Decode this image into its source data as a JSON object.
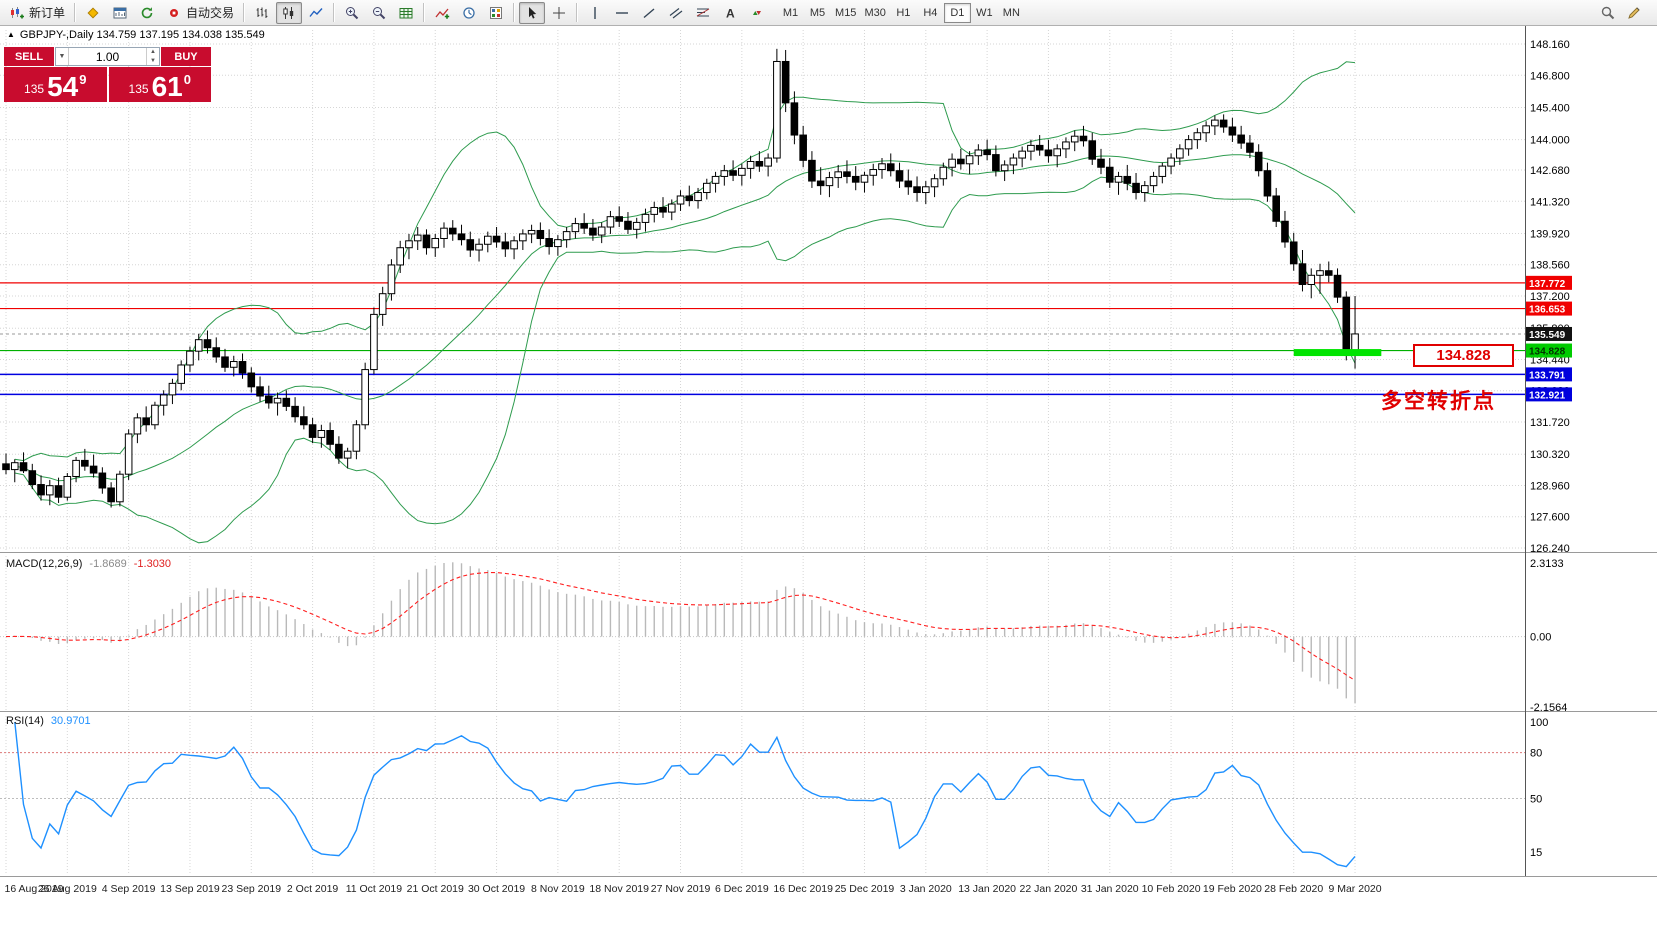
{
  "toolbar": {
    "new_order_label": "新订单",
    "auto_trading_label": "自动交易",
    "timeframes": [
      "M1",
      "M5",
      "M15",
      "M30",
      "H1",
      "H4",
      "D1",
      "W1",
      "MN"
    ],
    "active_timeframe": "D1"
  },
  "symbol_info": {
    "marker": "▲",
    "text": "GBPJPY-,Daily 134.759 137.195 134.038 135.549"
  },
  "trade_panel": {
    "sell_label": "SELL",
    "buy_label": "BUY",
    "volume": "1.00",
    "sell": {
      "prefix": "135",
      "main": "54",
      "sup": "9"
    },
    "buy": {
      "prefix": "135",
      "main": "61",
      "sup": "0"
    }
  },
  "annotations": {
    "price_label": "134.828",
    "turning_point": "多空转折点"
  },
  "price_axis": {
    "labels": [
      "148.160",
      "146.800",
      "145.400",
      "144.000",
      "142.680",
      "141.320",
      "139.920",
      "138.560",
      "137.200",
      "135.800",
      "134.440",
      "133.080",
      "131.720",
      "130.320",
      "128.960",
      "127.600",
      "126.240"
    ],
    "tags": [
      {
        "text": "137.772",
        "bg": "#f00000",
        "fg": "#ffffff"
      },
      {
        "text": "136.653",
        "bg": "#f00000",
        "fg": "#ffffff"
      },
      {
        "text": "135.549",
        "bg": "#111111",
        "fg": "#ffffff"
      },
      {
        "text": "134.828",
        "bg": "#00cc00",
        "fg": "#003300"
      },
      {
        "text": "133.791",
        "bg": "#0000dd",
        "fg": "#ffffff"
      },
      {
        "text": "132.921",
        "bg": "#0000dd",
        "fg": "#ffffff"
      }
    ]
  },
  "indicators": {
    "macd": {
      "name": "MACD(12,26,9)",
      "main_value": "-1.8689",
      "signal_value": "-1.3030",
      "scale": {
        "top": "2.3133",
        "zero": "0.00",
        "bottom": "-2.1564"
      },
      "fast": 12,
      "slow": 26,
      "smooth": 9
    },
    "rsi": {
      "name": "RSI(14)",
      "value": "30.9701",
      "period": 14,
      "scale_labels": [
        "100",
        "80",
        "50",
        "15"
      ],
      "levels": [
        80,
        50
      ]
    }
  },
  "objects": {
    "hlines": [
      {
        "price": 137.772,
        "color": "#f00000",
        "w": 1.2
      },
      {
        "price": 136.653,
        "color": "#f00000",
        "w": 1.2
      },
      {
        "price": 134.828,
        "color": "#00b000",
        "w": 1.2
      },
      {
        "price": 133.791,
        "color": "#0000e0",
        "w": 1.5
      },
      {
        "price": 132.921,
        "color": "#0000e0",
        "w": 1.5
      }
    ],
    "current_price": 135.549,
    "segment": {
      "price": 134.74,
      "from_index": 147,
      "to_index": 157,
      "thickness": 7,
      "color": "#00e400"
    }
  },
  "colors": {
    "grid": "#d6d6d6",
    "candle_up": "#ffffff",
    "candle_down": "#000000",
    "candle_border": "#000000",
    "bollinger": "#2e9b4e",
    "macd_hist": "#b9b9b9",
    "macd_signal": "#ff2020",
    "rsi_line": "#1e90ff",
    "level80": "#dd7777",
    "level50": "#bdbdbd",
    "current_line": "#9a9a9a",
    "panel_red": "#c80c2e",
    "axis_border": "#555555",
    "separator": "#9a9a9a"
  },
  "chart_data": {
    "type": "candlestick",
    "symbol": "GBPJPY-",
    "period": "Daily",
    "y_range": [
      126.24,
      148.16
    ],
    "x_label_step": 7,
    "bollinger": {
      "period": 20,
      "deviation": 2
    },
    "dates": [
      "16 Aug 2019",
      "26 Aug 2019",
      "4 Sep 2019",
      "13 Sep 2019",
      "23 Sep 2019",
      "2 Oct 2019",
      "11 Oct 2019",
      "21 Oct 2019",
      "30 Oct 2019",
      "8 Nov 2019",
      "18 Nov 2019",
      "27 Nov 2019",
      "6 Dec 2019",
      "16 Dec 2019",
      "25 Dec 2019",
      "3 Jan 2020",
      "13 Jan 2020",
      "22 Jan 2020",
      "31 Jan 2020",
      "10 Feb 2020",
      "19 Feb 2020",
      "28 Feb 2020",
      "9 Mar 2020"
    ],
    "ohlc": [
      [
        129.9,
        130.35,
        129.45,
        129.65
      ],
      [
        129.65,
        130.1,
        129.1,
        129.95
      ],
      [
        129.95,
        130.4,
        129.5,
        129.6
      ],
      [
        129.6,
        129.9,
        128.8,
        129.0
      ],
      [
        129.0,
        129.4,
        128.3,
        128.55
      ],
      [
        128.55,
        129.2,
        128.1,
        128.95
      ],
      [
        128.95,
        129.3,
        128.2,
        128.45
      ],
      [
        128.45,
        129.5,
        128.3,
        129.35
      ],
      [
        129.35,
        130.2,
        129.1,
        130.05
      ],
      [
        130.05,
        130.55,
        129.6,
        129.8
      ],
      [
        129.8,
        130.3,
        129.3,
        129.5
      ],
      [
        129.5,
        129.75,
        128.6,
        128.85
      ],
      [
        128.85,
        129.1,
        128.0,
        128.25
      ],
      [
        128.25,
        129.6,
        128.05,
        129.45
      ],
      [
        129.45,
        131.4,
        129.2,
        131.2
      ],
      [
        131.2,
        132.1,
        130.8,
        131.9
      ],
      [
        131.9,
        132.4,
        131.3,
        131.6
      ],
      [
        131.6,
        132.6,
        131.4,
        132.45
      ],
      [
        132.45,
        133.1,
        132.0,
        132.9
      ],
      [
        132.9,
        133.6,
        132.5,
        133.4
      ],
      [
        133.4,
        134.4,
        133.1,
        134.2
      ],
      [
        134.2,
        135.0,
        133.9,
        134.8
      ],
      [
        134.8,
        135.55,
        134.4,
        135.3
      ],
      [
        135.3,
        135.7,
        134.7,
        134.95
      ],
      [
        134.95,
        135.4,
        134.3,
        134.55
      ],
      [
        134.55,
        134.9,
        133.9,
        134.1
      ],
      [
        134.1,
        134.6,
        133.7,
        134.35
      ],
      [
        134.35,
        134.7,
        133.6,
        133.85
      ],
      [
        133.85,
        134.1,
        133.0,
        133.25
      ],
      [
        133.25,
        133.7,
        132.6,
        132.85
      ],
      [
        132.85,
        133.3,
        132.3,
        132.55
      ],
      [
        132.55,
        133.0,
        132.0,
        132.75
      ],
      [
        132.75,
        133.1,
        132.2,
        132.4
      ],
      [
        132.4,
        132.8,
        131.7,
        131.95
      ],
      [
        131.95,
        132.4,
        131.4,
        131.6
      ],
      [
        131.6,
        131.9,
        130.8,
        131.05
      ],
      [
        131.05,
        131.6,
        130.6,
        131.35
      ],
      [
        131.35,
        131.7,
        130.5,
        130.75
      ],
      [
        130.75,
        131.1,
        129.9,
        130.15
      ],
      [
        130.15,
        130.6,
        129.7,
        130.45
      ],
      [
        130.45,
        131.8,
        130.1,
        131.6
      ],
      [
        131.6,
        134.3,
        131.4,
        134.0
      ],
      [
        134.0,
        136.7,
        133.8,
        136.4
      ],
      [
        136.4,
        137.6,
        135.9,
        137.3
      ],
      [
        137.3,
        138.8,
        137.0,
        138.55
      ],
      [
        138.55,
        139.6,
        138.2,
        139.3
      ],
      [
        139.3,
        139.9,
        138.8,
        139.6
      ],
      [
        139.6,
        140.2,
        139.2,
        139.85
      ],
      [
        139.85,
        140.1,
        139.0,
        139.3
      ],
      [
        139.3,
        139.9,
        138.9,
        139.7
      ],
      [
        139.7,
        140.4,
        139.3,
        140.15
      ],
      [
        140.15,
        140.5,
        139.6,
        139.9
      ],
      [
        139.9,
        140.3,
        139.4,
        139.65
      ],
      [
        139.65,
        140.0,
        138.9,
        139.2
      ],
      [
        139.2,
        139.7,
        138.7,
        139.45
      ],
      [
        139.45,
        140.0,
        139.1,
        139.8
      ],
      [
        139.8,
        140.2,
        139.3,
        139.55
      ],
      [
        139.55,
        139.95,
        138.9,
        139.25
      ],
      [
        139.25,
        139.8,
        138.8,
        139.6
      ],
      [
        139.6,
        140.1,
        139.2,
        139.9
      ],
      [
        139.9,
        140.3,
        139.5,
        140.05
      ],
      [
        140.05,
        140.4,
        139.4,
        139.7
      ],
      [
        139.7,
        140.1,
        139.0,
        139.35
      ],
      [
        139.35,
        139.85,
        138.95,
        139.65
      ],
      [
        139.65,
        140.2,
        139.3,
        140.0
      ],
      [
        140.0,
        140.6,
        139.7,
        140.35
      ],
      [
        140.35,
        140.8,
        139.9,
        140.15
      ],
      [
        140.15,
        140.55,
        139.6,
        139.85
      ],
      [
        139.85,
        140.4,
        139.5,
        140.2
      ],
      [
        140.2,
        140.9,
        139.9,
        140.65
      ],
      [
        140.65,
        141.1,
        140.2,
        140.45
      ],
      [
        140.45,
        140.85,
        139.9,
        140.1
      ],
      [
        140.1,
        140.6,
        139.7,
        140.4
      ],
      [
        140.4,
        141.0,
        140.0,
        140.75
      ],
      [
        140.75,
        141.3,
        140.4,
        141.05
      ],
      [
        141.05,
        141.5,
        140.6,
        140.85
      ],
      [
        140.85,
        141.4,
        140.5,
        141.2
      ],
      [
        141.2,
        141.8,
        140.9,
        141.55
      ],
      [
        141.55,
        142.0,
        141.1,
        141.35
      ],
      [
        141.35,
        141.9,
        141.0,
        141.7
      ],
      [
        141.7,
        142.3,
        141.4,
        142.1
      ],
      [
        142.1,
        142.6,
        141.7,
        142.4
      ],
      [
        142.4,
        142.9,
        142.0,
        142.65
      ],
      [
        142.65,
        143.1,
        142.2,
        142.45
      ],
      [
        142.45,
        142.95,
        142.0,
        142.75
      ],
      [
        142.75,
        143.3,
        142.3,
        143.05
      ],
      [
        143.05,
        143.5,
        142.6,
        142.85
      ],
      [
        142.85,
        143.4,
        142.4,
        143.2
      ],
      [
        143.2,
        147.95,
        143.0,
        147.4
      ],
      [
        147.4,
        147.9,
        145.2,
        145.6
      ],
      [
        145.6,
        146.1,
        143.8,
        144.2
      ],
      [
        144.2,
        144.6,
        142.8,
        143.1
      ],
      [
        143.1,
        143.5,
        141.9,
        142.2
      ],
      [
        142.2,
        142.8,
        141.6,
        142.0
      ],
      [
        142.0,
        142.6,
        141.5,
        142.35
      ],
      [
        142.35,
        142.9,
        141.9,
        142.6
      ],
      [
        142.6,
        143.1,
        142.1,
        142.4
      ],
      [
        142.4,
        142.85,
        141.8,
        142.15
      ],
      [
        142.15,
        142.6,
        141.7,
        142.45
      ],
      [
        142.45,
        142.95,
        142.0,
        142.7
      ],
      [
        142.7,
        143.2,
        142.3,
        142.95
      ],
      [
        142.95,
        143.4,
        142.4,
        142.65
      ],
      [
        142.65,
        143.0,
        141.9,
        142.2
      ],
      [
        142.2,
        142.7,
        141.6,
        141.95
      ],
      [
        141.95,
        142.4,
        141.3,
        141.7
      ],
      [
        141.7,
        142.2,
        141.2,
        141.95
      ],
      [
        141.95,
        142.5,
        141.5,
        142.3
      ],
      [
        142.3,
        143.0,
        142.0,
        142.8
      ],
      [
        142.8,
        143.4,
        142.4,
        143.15
      ],
      [
        143.15,
        143.6,
        142.7,
        142.95
      ],
      [
        142.95,
        143.5,
        142.5,
        143.3
      ],
      [
        143.3,
        143.8,
        142.9,
        143.55
      ],
      [
        143.55,
        144.0,
        143.1,
        143.35
      ],
      [
        143.35,
        143.75,
        142.4,
        142.65
      ],
      [
        142.65,
        143.1,
        142.2,
        142.9
      ],
      [
        142.9,
        143.4,
        142.5,
        143.2
      ],
      [
        143.2,
        143.7,
        142.8,
        143.5
      ],
      [
        143.5,
        144.0,
        143.1,
        143.75
      ],
      [
        143.75,
        144.2,
        143.3,
        143.55
      ],
      [
        143.55,
        144.0,
        143.0,
        143.3
      ],
      [
        143.3,
        143.8,
        142.8,
        143.6
      ],
      [
        143.6,
        144.1,
        143.2,
        143.9
      ],
      [
        143.9,
        144.4,
        143.5,
        144.15
      ],
      [
        144.15,
        144.6,
        143.7,
        143.95
      ],
      [
        143.95,
        144.3,
        142.9,
        143.15
      ],
      [
        143.15,
        143.6,
        142.5,
        142.8
      ],
      [
        142.8,
        143.2,
        141.9,
        142.15
      ],
      [
        142.15,
        142.6,
        141.6,
        142.4
      ],
      [
        142.4,
        142.9,
        141.8,
        142.1
      ],
      [
        142.1,
        142.55,
        141.4,
        141.7
      ],
      [
        141.7,
        142.2,
        141.3,
        142.0
      ],
      [
        142.0,
        142.6,
        141.7,
        142.4
      ],
      [
        142.4,
        143.0,
        142.1,
        142.85
      ],
      [
        142.85,
        143.4,
        142.5,
        143.2
      ],
      [
        143.2,
        143.8,
        142.9,
        143.6
      ],
      [
        143.6,
        144.2,
        143.3,
        144.0
      ],
      [
        144.0,
        144.5,
        143.6,
        144.3
      ],
      [
        144.3,
        144.8,
        143.9,
        144.6
      ],
      [
        144.6,
        145.05,
        144.2,
        144.85
      ],
      [
        144.85,
        145.1,
        144.3,
        144.55
      ],
      [
        144.55,
        144.95,
        143.9,
        144.2
      ],
      [
        144.2,
        144.6,
        143.6,
        143.85
      ],
      [
        143.85,
        144.2,
        143.2,
        143.45
      ],
      [
        143.45,
        143.8,
        142.4,
        142.65
      ],
      [
        142.65,
        143.0,
        141.3,
        141.55
      ],
      [
        141.55,
        141.9,
        140.2,
        140.45
      ],
      [
        140.45,
        140.9,
        139.3,
        139.55
      ],
      [
        139.55,
        139.95,
        138.3,
        138.6
      ],
      [
        138.6,
        139.2,
        137.4,
        137.7
      ],
      [
        137.7,
        138.4,
        137.1,
        138.1
      ],
      [
        138.1,
        138.6,
        137.3,
        138.3
      ],
      [
        138.3,
        138.7,
        137.8,
        138.1
      ],
      [
        138.1,
        138.4,
        136.9,
        137.15
      ],
      [
        137.15,
        137.4,
        134.4,
        134.76
      ],
      [
        134.76,
        137.2,
        134.04,
        135.55
      ]
    ]
  }
}
